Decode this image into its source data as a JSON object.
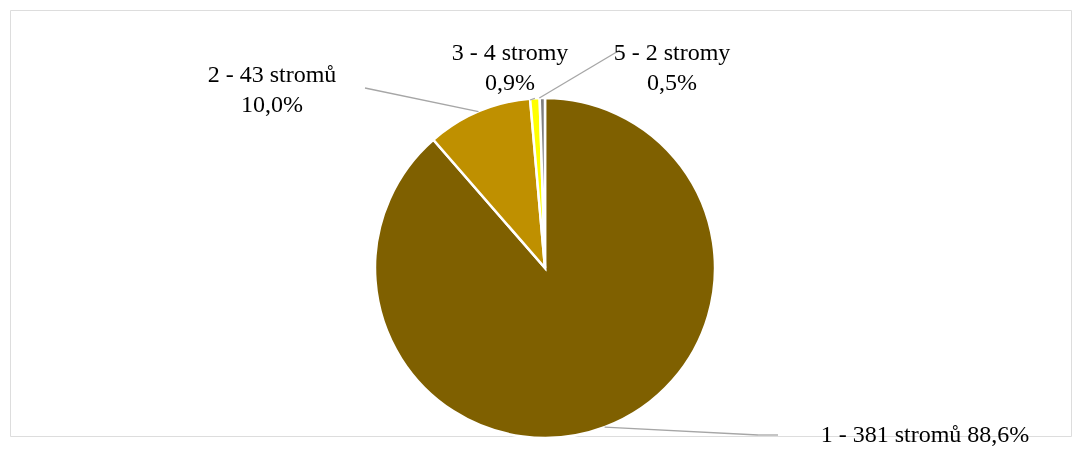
{
  "chart_data": {
    "type": "pie",
    "categories": [
      "1 - 381 stromů",
      "2 - 43 stromů",
      "3 - 4 stromy",
      "5 - 2 stromy"
    ],
    "values": [
      88.6,
      10.0,
      0.9,
      0.5
    ],
    "colors": [
      "#7f6000",
      "#bf9000",
      "#ffff00",
      "#7f7f7f"
    ],
    "value_labels": [
      "88,6%",
      "10,0%",
      "0,9%",
      "0,5%"
    ]
  }
}
